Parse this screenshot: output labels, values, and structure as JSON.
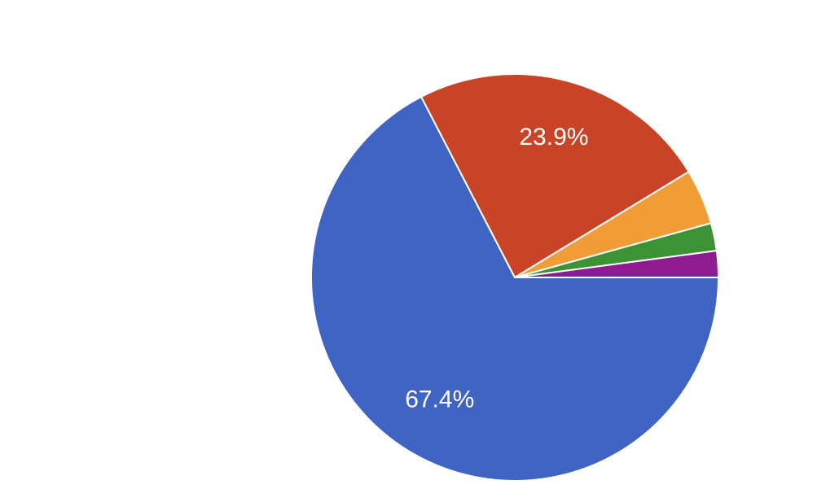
{
  "chart_data": {
    "type": "pie",
    "values": [
      67.4,
      23.9,
      4.4,
      2.2,
      2.1
    ],
    "value_labels": [
      "67.4%",
      "23.9%",
      null,
      null,
      null
    ],
    "colors": [
      "#3f64c4",
      "#c94426",
      "#f09c37",
      "#3d9235",
      "#8e1b92"
    ]
  }
}
